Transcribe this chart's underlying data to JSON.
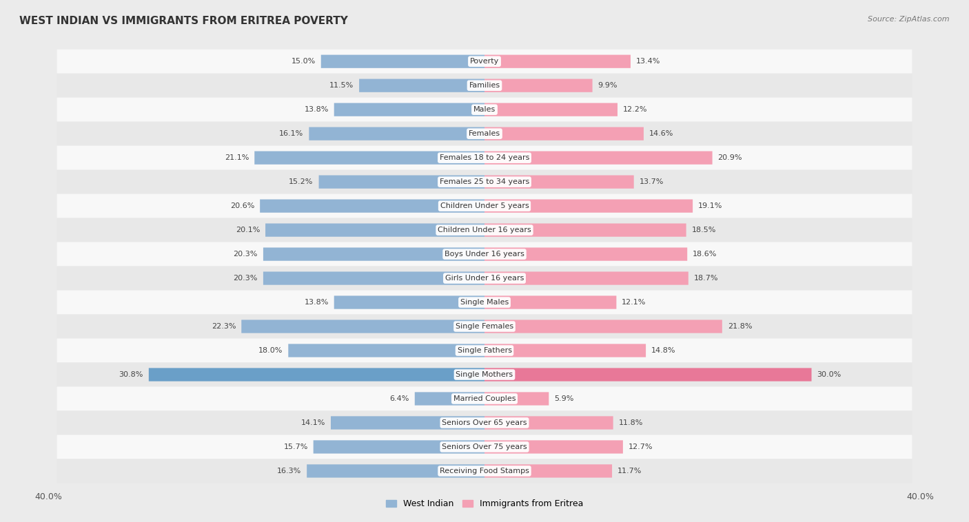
{
  "title": "WEST INDIAN VS IMMIGRANTS FROM ERITREA POVERTY",
  "source": "Source: ZipAtlas.com",
  "categories": [
    "Poverty",
    "Families",
    "Males",
    "Females",
    "Females 18 to 24 years",
    "Females 25 to 34 years",
    "Children Under 5 years",
    "Children Under 16 years",
    "Boys Under 16 years",
    "Girls Under 16 years",
    "Single Males",
    "Single Females",
    "Single Fathers",
    "Single Mothers",
    "Married Couples",
    "Seniors Over 65 years",
    "Seniors Over 75 years",
    "Receiving Food Stamps"
  ],
  "west_indian": [
    15.0,
    11.5,
    13.8,
    16.1,
    21.1,
    15.2,
    20.6,
    20.1,
    20.3,
    20.3,
    13.8,
    22.3,
    18.0,
    30.8,
    6.4,
    14.1,
    15.7,
    16.3
  ],
  "eritrea": [
    13.4,
    9.9,
    12.2,
    14.6,
    20.9,
    13.7,
    19.1,
    18.5,
    18.6,
    18.7,
    12.1,
    21.8,
    14.8,
    30.0,
    5.9,
    11.8,
    12.7,
    11.7
  ],
  "west_indian_color": "#92b4d4",
  "eritrea_color": "#f4a0b4",
  "single_mothers_wi_color": "#6a9fc8",
  "single_mothers_er_color": "#e87898",
  "bar_height": 0.55,
  "xlim": 40.0,
  "background_color": "#ebebeb",
  "row_color_odd": "#f8f8f8",
  "row_color_even": "#e8e8e8",
  "label_fontsize": 8.0,
  "title_fontsize": 11,
  "legend_labels": [
    "West Indian",
    "Immigrants from Eritrea"
  ],
  "scale": 1.0
}
